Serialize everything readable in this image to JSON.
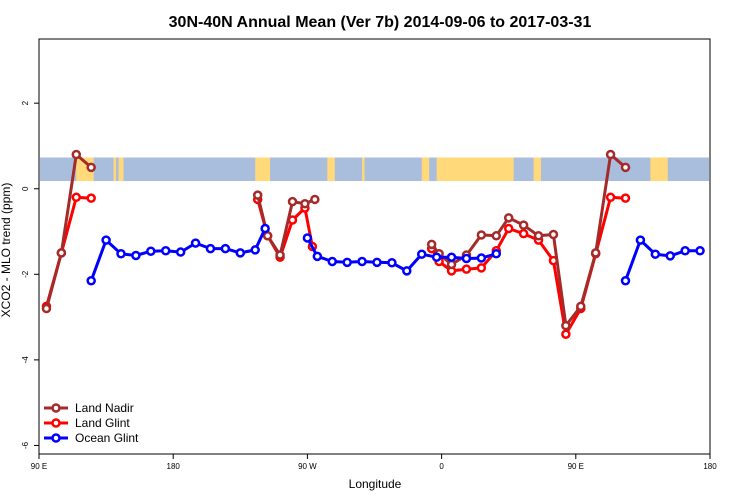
{
  "chart_data": {
    "type": "line",
    "title": "30N-40N Annual Mean (Ver 7b)   2014-09-06 to 2017-03-31",
    "xlabel": "Longitude",
    "ylabel": "XCO2 - MLO trend (ppm)",
    "xlim": [
      -90,
      180
    ],
    "ylim": [
      -6.2,
      3.5
    ],
    "x_ticks": [
      {
        "value": -90,
        "label": "90 E"
      },
      {
        "value": -36,
        "label": "180"
      },
      {
        "value": 18,
        "label": "90 W"
      },
      {
        "value": 72,
        "label": "0"
      },
      {
        "value": 126,
        "label": "90 E"
      },
      {
        "value": 180,
        "label": "180"
      }
    ],
    "y_ticks": [
      {
        "value": -6,
        "label": "-6"
      },
      {
        "value": -4,
        "label": "-4"
      },
      {
        "value": -2,
        "label": "-2"
      },
      {
        "value": 0,
        "label": "0"
      },
      {
        "value": 2,
        "label": "2"
      }
    ],
    "land_band": {
      "ymin": 0.18,
      "ymax": 0.73,
      "ocean_color": "#a9bddd",
      "land_color": "#ffd97a"
    },
    "land_segments": [
      [
        -75,
        -68
      ],
      [
        -60,
        -59
      ],
      [
        -58,
        -56
      ],
      [
        -3,
        3
      ],
      [
        26,
        29
      ],
      [
        40,
        41
      ],
      [
        64,
        67
      ],
      [
        70,
        101
      ],
      [
        109,
        112
      ],
      [
        156,
        163
      ]
    ],
    "legend_position": "bottom-left",
    "series": [
      {
        "name": "Land Glint",
        "color": "#ff0000",
        "segments": [
          [
            [
              -87,
              -2.75
            ],
            [
              -81,
              -1.5
            ],
            [
              -75,
              -0.2
            ],
            [
              -69,
              -0.22
            ]
          ],
          [
            [
              -2,
              -0.25
            ],
            [
              2,
              -1.1
            ],
            [
              7,
              -1.6
            ],
            [
              12,
              -0.73
            ],
            [
              17,
              -0.45
            ],
            [
              20,
              -1.35
            ]
          ],
          [
            [
              68,
              -1.4
            ],
            [
              71,
              -1.7
            ],
            [
              76,
              -1.92
            ],
            [
              82,
              -1.88
            ],
            [
              88,
              -1.85
            ],
            [
              94,
              -1.45
            ],
            [
              99,
              -0.93
            ],
            [
              105,
              -1.05
            ],
            [
              111,
              -1.2
            ],
            [
              117,
              -1.68
            ],
            [
              122,
              -3.4
            ],
            [
              128,
              -2.8
            ],
            [
              134,
              -1.52
            ],
            [
              140,
              -0.2
            ],
            [
              146,
              -0.22
            ]
          ]
        ]
      },
      {
        "name": "Land Nadir",
        "color": "#a52a2a",
        "segments": [
          [
            [
              -87,
              -2.8
            ],
            [
              -81,
              -1.5
            ],
            [
              -75,
              0.8
            ],
            [
              -69,
              0.5
            ]
          ],
          [
            [
              -2,
              -0.15
            ],
            [
              2,
              -1.1
            ],
            [
              7,
              -1.55
            ],
            [
              12,
              -0.3
            ],
            [
              17,
              -0.35
            ],
            [
              21,
              -0.25
            ]
          ],
          [
            [
              68,
              -1.3
            ],
            [
              71,
              -1.52
            ],
            [
              76,
              -1.77
            ],
            [
              82,
              -1.55
            ],
            [
              88,
              -1.08
            ],
            [
              94,
              -1.1
            ],
            [
              99,
              -0.68
            ],
            [
              105,
              -0.85
            ],
            [
              111,
              -1.1
            ],
            [
              117,
              -1.07
            ],
            [
              122,
              -3.2
            ],
            [
              128,
              -2.75
            ],
            [
              134,
              -1.5
            ],
            [
              140,
              0.8
            ],
            [
              146,
              0.5
            ]
          ]
        ]
      },
      {
        "name": "Ocean Glint",
        "color": "#0000ff",
        "segments": [
          [
            [
              -69,
              -2.15
            ],
            [
              -63,
              -1.2
            ],
            [
              -57,
              -1.52
            ],
            [
              -51,
              -1.56
            ],
            [
              -45,
              -1.46
            ],
            [
              -39,
              -1.45
            ],
            [
              -33,
              -1.48
            ],
            [
              -27,
              -1.27
            ],
            [
              -21,
              -1.4
            ],
            [
              -15,
              -1.4
            ],
            [
              -9,
              -1.5
            ],
            [
              -3,
              -1.43
            ],
            [
              1,
              -0.93
            ]
          ],
          [
            [
              18,
              -1.15
            ],
            [
              22,
              -1.58
            ],
            [
              28,
              -1.7
            ],
            [
              34,
              -1.72
            ],
            [
              40,
              -1.7
            ],
            [
              46,
              -1.72
            ],
            [
              52,
              -1.73
            ],
            [
              58,
              -1.92
            ],
            [
              64,
              -1.53
            ],
            [
              70,
              -1.6
            ],
            [
              76,
              -1.6
            ],
            [
              82,
              -1.63
            ],
            [
              88,
              -1.62
            ],
            [
              94,
              -1.52
            ]
          ],
          [
            [
              146,
              -2.15
            ],
            [
              152,
              -1.2
            ],
            [
              158,
              -1.53
            ],
            [
              164,
              -1.57
            ],
            [
              170,
              -1.45
            ],
            [
              176,
              -1.45
            ]
          ]
        ]
      }
    ],
    "legend": [
      {
        "name": "Land Nadir",
        "color": "#a52a2a"
      },
      {
        "name": "Land Glint",
        "color": "#ff0000"
      },
      {
        "name": "Ocean Glint",
        "color": "#0000ff"
      }
    ]
  }
}
